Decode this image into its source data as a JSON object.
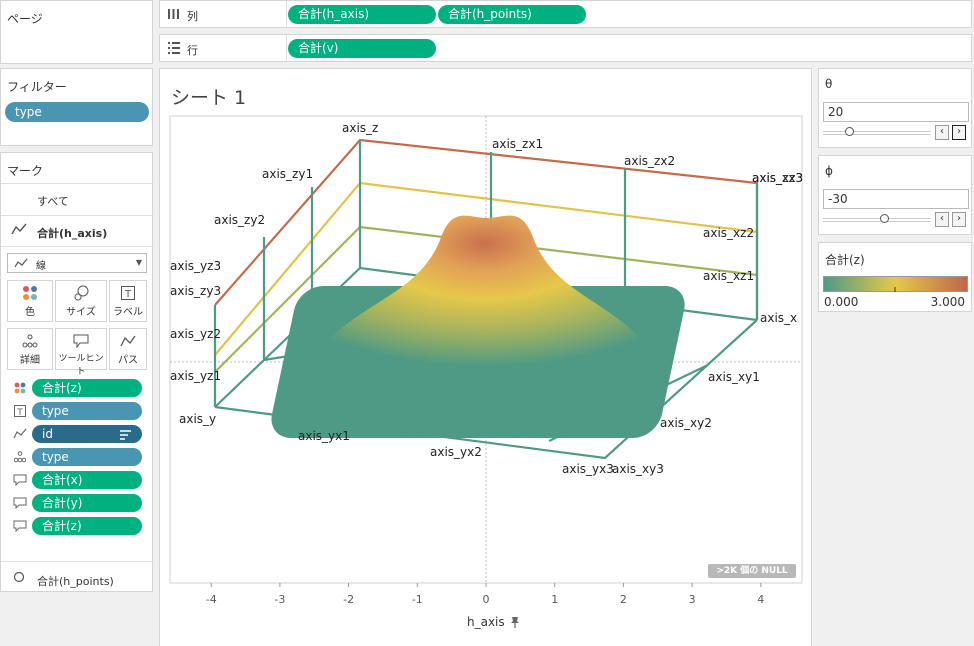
{
  "pages": {
    "title": "ページ"
  },
  "shelves": {
    "columns_label": "列",
    "rows_label": "行",
    "columns_pills": [
      "合計(h_axis)",
      "合計(h_points)"
    ],
    "rows_pills": [
      "合計(v)"
    ]
  },
  "filters": {
    "title": "フィルター",
    "pills": [
      "type"
    ]
  },
  "marks": {
    "title": "マーク",
    "all_label": "すべて",
    "layer1_label": "合計(h_axis)",
    "mark_type": "線",
    "buttons": [
      "色",
      "サイズ",
      "ラベル",
      "詳細",
      "ツールヒント",
      "パス"
    ],
    "fields": [
      {
        "icon": "color-icon",
        "label": "合計(z)",
        "kind": "green"
      },
      {
        "icon": "label-icon",
        "label": "type",
        "kind": "blue"
      },
      {
        "icon": "path-icon",
        "label": "id",
        "kind": "darkblue"
      },
      {
        "icon": "detail-icon",
        "label": "type",
        "kind": "blue"
      },
      {
        "icon": "tooltip-icon",
        "label": "合計(x)",
        "kind": "green"
      },
      {
        "icon": "tooltip-icon",
        "label": "合計(y)",
        "kind": "green"
      },
      {
        "icon": "tooltip-icon",
        "label": "合計(z)",
        "kind": "green"
      }
    ],
    "layer2_label": "合計(h_points)"
  },
  "sheet": {
    "title": "シート 1",
    "null_badge": ">2K 個の NULL",
    "x_axis_title": "h_axis"
  },
  "chart_data": {
    "type": "scatter",
    "xlabel": "h_axis",
    "xlim": [
      -4.6,
      4.6
    ],
    "x_ticks": [
      -4,
      -3,
      -2,
      -1,
      0,
      1,
      2,
      3,
      4
    ],
    "axis_labels": [
      "axis_z",
      "axis_zx1",
      "axis_zx2",
      "axis_zx3",
      "axis_zy1",
      "axis_zy2",
      "axis_zy3",
      "axis_yz1",
      "axis_yz2",
      "axis_yz3",
      "axis_x",
      "axis_xz1",
      "axis_xz2",
      "axis_xz3",
      "axis_xy1",
      "axis_xy2",
      "axis_xy3",
      "axis_y",
      "axis_yx1",
      "axis_yx2",
      "axis_yx3"
    ],
    "colors": {
      "low": "#4e9a85",
      "mid": "#e6c84a",
      "high": "#c0654a"
    }
  },
  "controls": {
    "theta": {
      "label": "θ",
      "value": "20",
      "position": 0.22
    },
    "phi": {
      "label": "ϕ",
      "value": "-30",
      "position": 0.58
    },
    "legend": {
      "title": "合計(z)",
      "min": "0.000",
      "max": "3.000"
    }
  }
}
